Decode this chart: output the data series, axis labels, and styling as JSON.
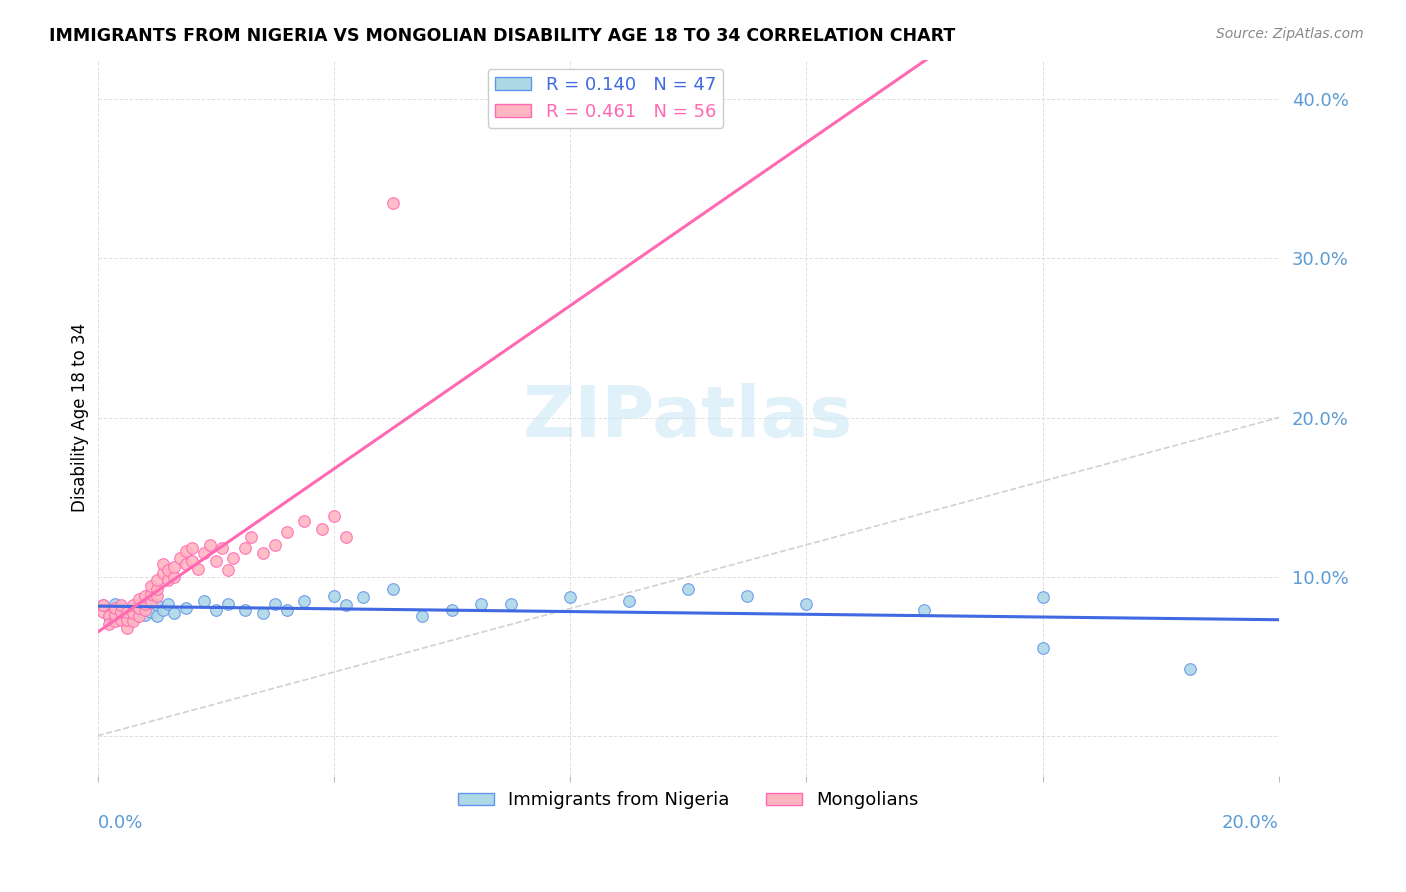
{
  "title": "IMMIGRANTS FROM NIGERIA VS MONGOLIAN DISABILITY AGE 18 TO 34 CORRELATION CHART",
  "source": "Source: ZipAtlas.com",
  "ylabel": "Disability Age 18 to 34",
  "nigeria_color": "#ADD8E6",
  "mongolia_color": "#FFB6C1",
  "nigeria_edge_color": "#6495ED",
  "mongolia_edge_color": "#FF69B4",
  "nigeria_line_color": "#4169E1",
  "mongolia_line_color": "#FF69B4",
  "ref_line_color": "#CCCCCC",
  "R_nigeria": 0.14,
  "N_nigeria": 47,
  "R_mongolia": 0.461,
  "N_mongolia": 56,
  "x_range": [
    0.0,
    0.2
  ],
  "y_range": [
    -0.025,
    0.425
  ],
  "y_ticks": [
    0.0,
    0.1,
    0.2,
    0.3,
    0.4
  ],
  "x_ticks": [
    0.0,
    0.04,
    0.08,
    0.12,
    0.16,
    0.2
  ],
  "nigeria_x": [
    0.001,
    0.002,
    0.002,
    0.003,
    0.003,
    0.004,
    0.004,
    0.005,
    0.005,
    0.006,
    0.006,
    0.007,
    0.007,
    0.008,
    0.008,
    0.009,
    0.01,
    0.01,
    0.011,
    0.012,
    0.013,
    0.015,
    0.018,
    0.02,
    0.022,
    0.025,
    0.028,
    0.03,
    0.032,
    0.035,
    0.04,
    0.042,
    0.045,
    0.05,
    0.055,
    0.06,
    0.065,
    0.07,
    0.08,
    0.09,
    0.1,
    0.11,
    0.12,
    0.14,
    0.16,
    0.16,
    0.185
  ],
  "nigeria_y": [
    0.082,
    0.078,
    0.075,
    0.079,
    0.083,
    0.076,
    0.081,
    0.073,
    0.077,
    0.08,
    0.074,
    0.079,
    0.083,
    0.076,
    0.08,
    0.078,
    0.082,
    0.075,
    0.079,
    0.083,
    0.077,
    0.08,
    0.085,
    0.079,
    0.083,
    0.079,
    0.077,
    0.083,
    0.079,
    0.085,
    0.088,
    0.082,
    0.087,
    0.092,
    0.075,
    0.079,
    0.083,
    0.083,
    0.087,
    0.085,
    0.092,
    0.088,
    0.083,
    0.079,
    0.087,
    0.055,
    0.042
  ],
  "mongolia_x": [
    0.001,
    0.001,
    0.002,
    0.002,
    0.003,
    0.003,
    0.003,
    0.004,
    0.004,
    0.004,
    0.005,
    0.005,
    0.005,
    0.006,
    0.006,
    0.006,
    0.007,
    0.007,
    0.007,
    0.008,
    0.008,
    0.008,
    0.009,
    0.009,
    0.009,
    0.01,
    0.01,
    0.01,
    0.011,
    0.011,
    0.012,
    0.012,
    0.013,
    0.013,
    0.014,
    0.015,
    0.015,
    0.016,
    0.016,
    0.017,
    0.018,
    0.019,
    0.02,
    0.021,
    0.022,
    0.023,
    0.025,
    0.026,
    0.028,
    0.03,
    0.032,
    0.035,
    0.038,
    0.04,
    0.042,
    0.05
  ],
  "mongolia_y": [
    0.078,
    0.082,
    0.075,
    0.07,
    0.072,
    0.076,
    0.08,
    0.073,
    0.078,
    0.082,
    0.068,
    0.073,
    0.078,
    0.072,
    0.077,
    0.082,
    0.075,
    0.08,
    0.086,
    0.079,
    0.083,
    0.088,
    0.084,
    0.089,
    0.094,
    0.088,
    0.092,
    0.098,
    0.102,
    0.108,
    0.098,
    0.104,
    0.1,
    0.106,
    0.112,
    0.108,
    0.116,
    0.11,
    0.118,
    0.105,
    0.115,
    0.12,
    0.11,
    0.118,
    0.104,
    0.112,
    0.118,
    0.125,
    0.115,
    0.12,
    0.128,
    0.135,
    0.13,
    0.138,
    0.125,
    0.335
  ]
}
